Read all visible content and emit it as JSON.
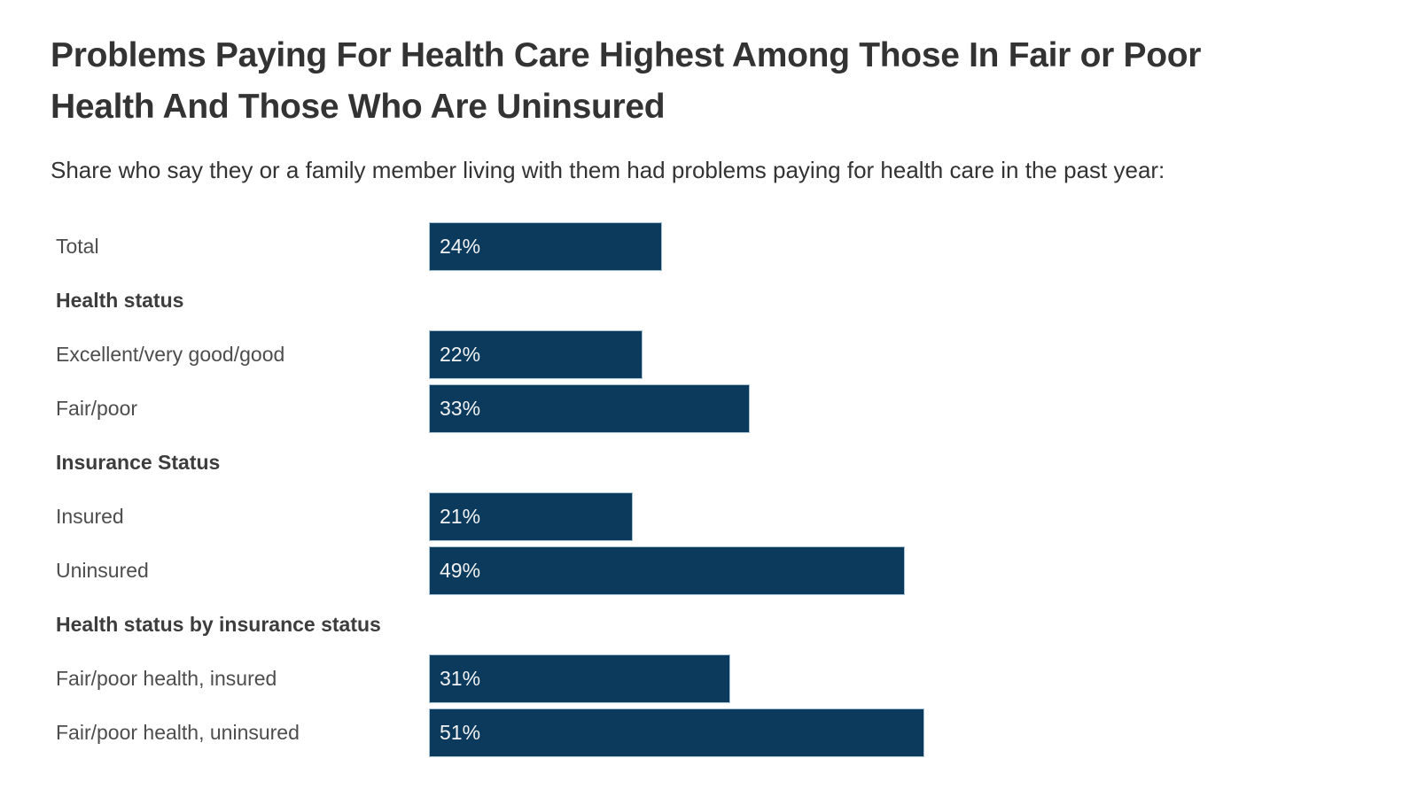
{
  "header": {
    "title": "Problems Paying For Health Care Highest Among Those In Fair or Poor Health And Those Who Are Uninsured",
    "subtitle": "Share who say they or a family member living with them had problems paying for health care in the past year:"
  },
  "chart_data": {
    "type": "bar",
    "orientation": "horizontal",
    "title": "Problems Paying For Health Care Highest Among Those In Fair or Poor Health And Those Who Are Uninsured",
    "subtitle": "Share who say they or a family member living with them had problems paying for health care in the past year:",
    "xlabel": "",
    "ylabel": "",
    "axis_max": 100,
    "grid": false,
    "legend": false,
    "value_suffix": "%",
    "bar_color": "#0b3a5d",
    "bar_border_color": "#a9c3d6",
    "value_text_color": "#f2f2f2",
    "label_color": "#4d4d4d",
    "group_header_color": "#3d3d3d",
    "categories": [
      "Total",
      "Excellent/very good/good",
      "Fair/poor",
      "Insured",
      "Uninsured",
      "Fair/poor health, insured",
      "Fair/poor health, uninsured"
    ],
    "values": [
      24,
      22,
      33,
      21,
      49,
      31,
      51
    ],
    "rows": [
      {
        "kind": "bar",
        "label": "Total",
        "value": 24,
        "display": "24%"
      },
      {
        "kind": "header",
        "label": "Health status"
      },
      {
        "kind": "bar",
        "label": "Excellent/very good/good",
        "value": 22,
        "display": "22%"
      },
      {
        "kind": "bar",
        "label": "Fair/poor",
        "value": 33,
        "display": "33%"
      },
      {
        "kind": "header",
        "label": "Insurance Status"
      },
      {
        "kind": "bar",
        "label": "Insured",
        "value": 21,
        "display": "21%"
      },
      {
        "kind": "bar",
        "label": "Uninsured",
        "value": 49,
        "display": "49%"
      },
      {
        "kind": "header",
        "label": "Health status by insurance status"
      },
      {
        "kind": "bar",
        "label": "Fair/poor health, insured",
        "value": 31,
        "display": "31%"
      },
      {
        "kind": "bar",
        "label": "Fair/poor health, uninsured",
        "value": 51,
        "display": "51%"
      }
    ]
  }
}
